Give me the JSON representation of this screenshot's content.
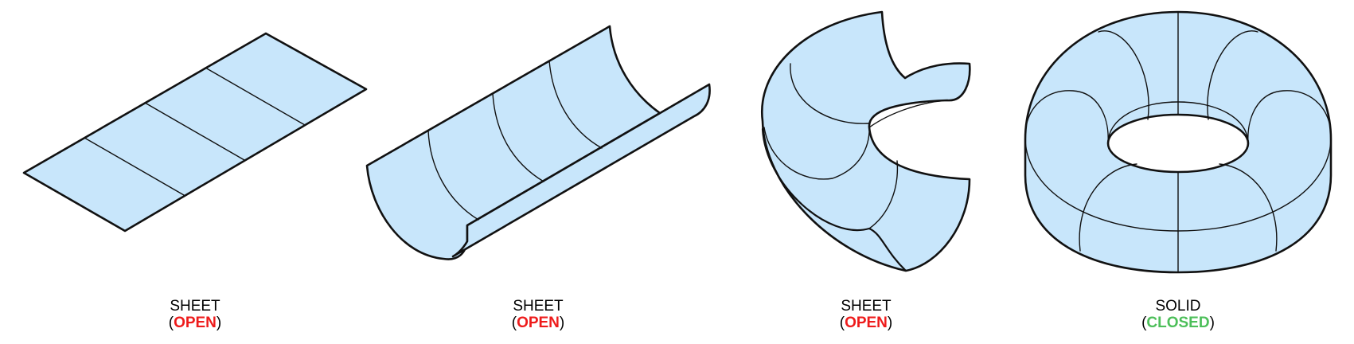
{
  "colors": {
    "fill": "#c8e6fb",
    "stroke": "#111111",
    "open": "#ee1b1b",
    "closed": "#4dbf5a"
  },
  "items": [
    {
      "icon": "flat-sheet-icon",
      "label": "SHEET",
      "status": "OPEN",
      "status_color": "#ee1b1b"
    },
    {
      "icon": "half-cylinder-sheet-icon",
      "label": "SHEET",
      "status": "OPEN",
      "status_color": "#ee1b1b"
    },
    {
      "icon": "partial-torus-sheet-icon",
      "label": "SHEET",
      "status": "OPEN",
      "status_color": "#ee1b1b"
    },
    {
      "icon": "torus-solid-icon",
      "label": "SOLID",
      "status": "CLOSED",
      "status_color": "#4dbf5a"
    }
  ],
  "paren_open": "(",
  "paren_close": ")"
}
